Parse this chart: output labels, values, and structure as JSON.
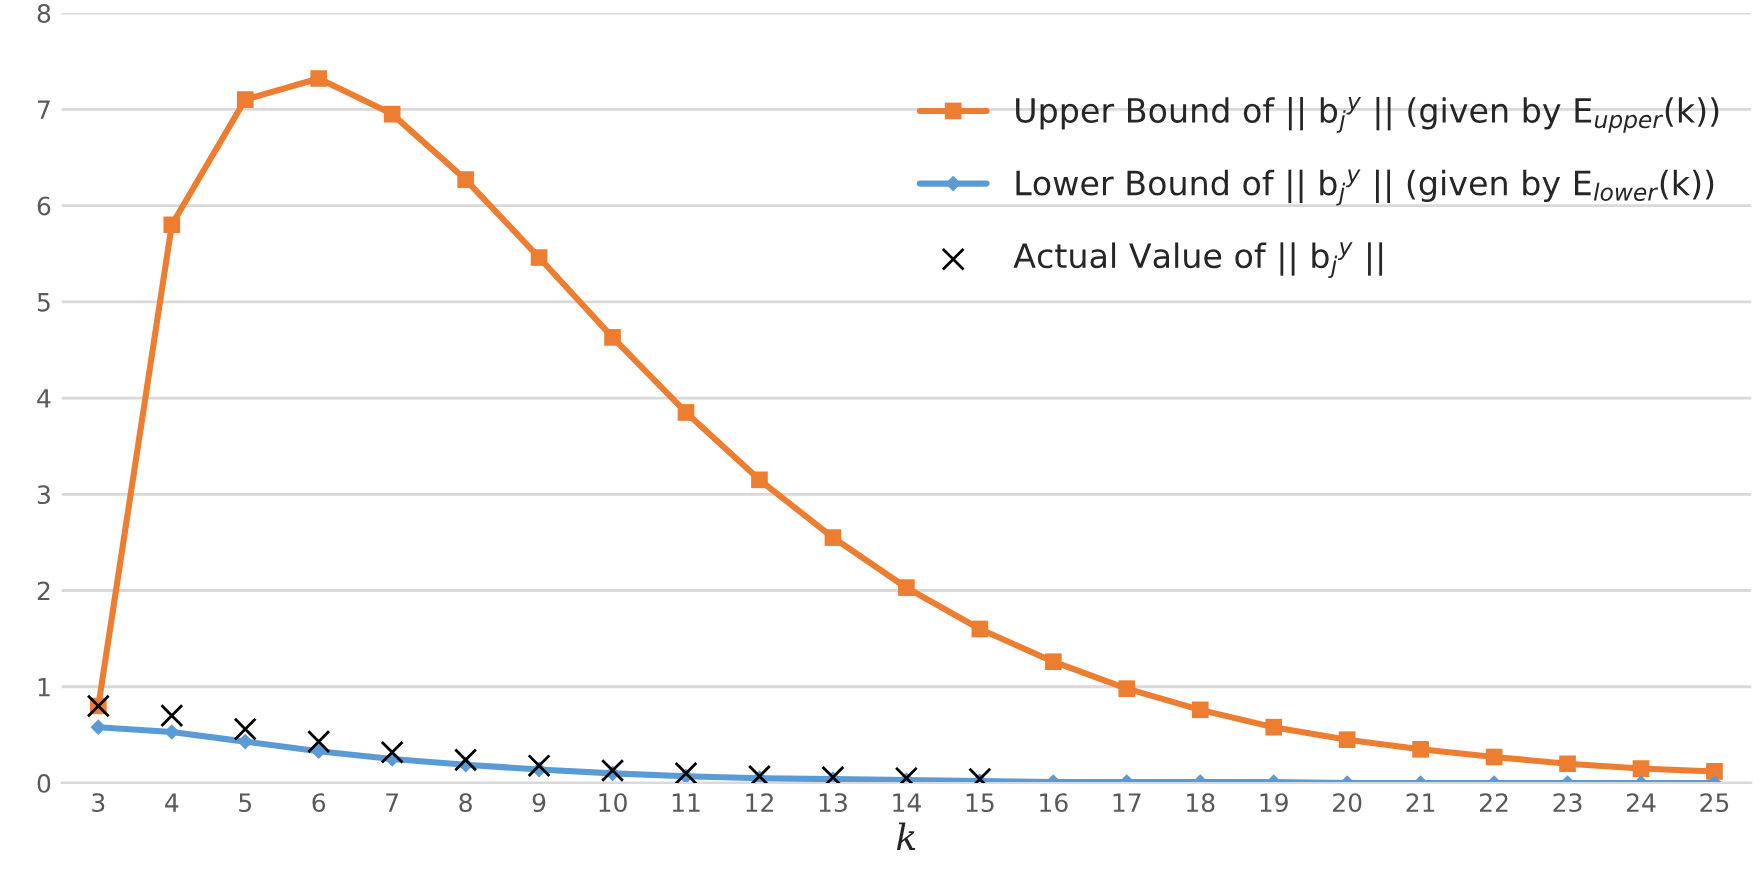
{
  "chart_data": {
    "type": "line",
    "xlabel": "k",
    "categories": [
      "3",
      "4",
      "5",
      "6",
      "7",
      "8",
      "9",
      "10",
      "11",
      "12",
      "13",
      "14",
      "15",
      "16",
      "17",
      "18",
      "19",
      "20",
      "21",
      "22",
      "23",
      "24",
      "25"
    ],
    "series": [
      {
        "name": "Upper Bound of || b$_{j}$$^{y}$ || (given by E$_{upper}$(k))",
        "color": "#ed7d31",
        "marker": "square",
        "values": [
          0.8,
          5.8,
          7.1,
          7.32,
          6.95,
          6.27,
          5.46,
          4.63,
          3.85,
          3.15,
          2.55,
          2.03,
          1.6,
          1.26,
          0.98,
          0.76,
          0.58,
          0.45,
          0.35,
          0.27,
          0.2,
          0.15,
          0.12
        ]
      },
      {
        "name": "Lower Bound of || b$_{j}$$^{y}$ || (given by E$_{lower}$(k))",
        "color": "#5b9bd5",
        "marker": "diamond",
        "values": [
          0.58,
          0.53,
          0.43,
          0.33,
          0.25,
          0.19,
          0.14,
          0.1,
          0.07,
          0.05,
          0.04,
          0.03,
          0.02,
          0.01,
          0.01,
          0.01,
          0.01,
          0,
          0,
          0,
          0,
          0,
          0
        ]
      },
      {
        "name": "Actual Value of || b$_{j}$$^{y}$ ||",
        "type": "scatter",
        "color": "#000000",
        "marker": "cross",
        "values": [
          0.8,
          0.7,
          0.56,
          0.43,
          0.32,
          0.24,
          0.18,
          0.13,
          0.1,
          0.07,
          0.06,
          0.05,
          0.04,
          null,
          null,
          null,
          null,
          null,
          null,
          null,
          null,
          null,
          null
        ]
      }
    ],
    "ylim": [
      0,
      8
    ],
    "yticks": [
      0,
      1,
      2,
      3,
      4,
      5,
      6,
      7,
      8
    ],
    "grid": "y",
    "legend": "top right",
    "line_style": "solid"
  }
}
